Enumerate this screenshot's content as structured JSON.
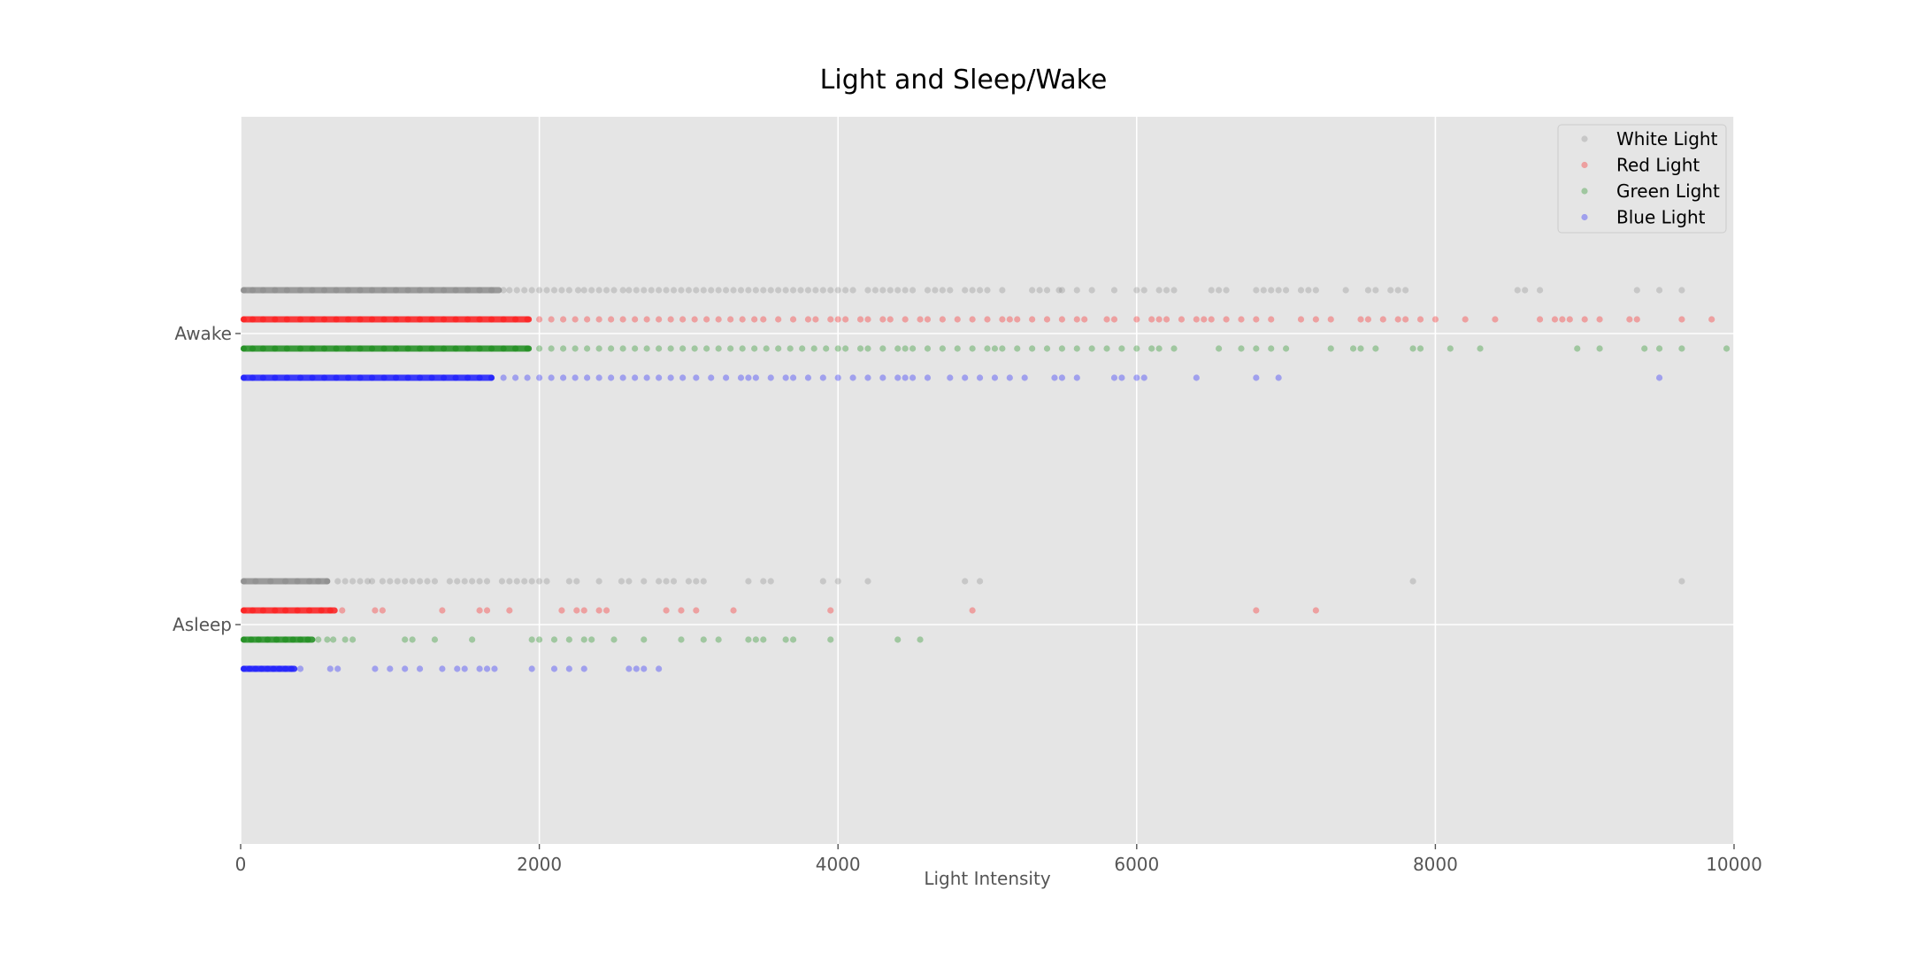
{
  "chart_data": {
    "type": "scatter",
    "title": "Light and Sleep/Wake",
    "xlabel": "Light Intensity",
    "ylabel": "",
    "xlim": [
      0,
      10000
    ],
    "xticks": [
      0,
      2000,
      4000,
      6000,
      8000,
      10000
    ],
    "xtick_labels": [
      "0",
      "2000",
      "4000",
      "6000",
      "8000",
      "10000"
    ],
    "categories": [
      "Asleep",
      "Awake"
    ],
    "grid": true,
    "legend_position": "top-right",
    "series": [
      {
        "name": "White Light",
        "color": "#808080",
        "awake": [
          20,
          80,
          150,
          230,
          310,
          400,
          480,
          560,
          640,
          720,
          800,
          880,
          960,
          1040,
          1120,
          1200,
          1280,
          1360,
          1440,
          1520,
          1600,
          1680,
          1760,
          1800,
          1850,
          1900,
          1950,
          2000,
          2050,
          2100,
          2150,
          2200,
          2260,
          2300,
          2350,
          2400,
          2450,
          2500,
          2560,
          2600,
          2650,
          2700,
          2750,
          2800,
          2850,
          2900,
          2950,
          3000,
          3050,
          3100,
          3150,
          3200,
          3250,
          3300,
          3350,
          3400,
          3450,
          3500,
          3550,
          3600,
          3650,
          3700,
          3750,
          3800,
          3850,
          3900,
          3950,
          4000,
          4050,
          4100,
          4200,
          4250,
          4300,
          4350,
          4400,
          4450,
          4500,
          4600,
          4650,
          4700,
          4750,
          4850,
          4900,
          4950,
          5000,
          5100,
          5300,
          5350,
          5400,
          5480,
          5500,
          5600,
          5700,
          5850,
          6000,
          6050,
          6150,
          6200,
          6250,
          6500,
          6550,
          6600,
          6800,
          6850,
          6900,
          6950,
          7000,
          7100,
          7150,
          7200,
          7400,
          7550,
          7600,
          7700,
          7750,
          7800,
          8550,
          8600,
          8700,
          9350,
          9500,
          9650
        ],
        "asleep": [
          20,
          100,
          200,
          300,
          380,
          460,
          520,
          580,
          650,
          700,
          750,
          800,
          850,
          880,
          950,
          1000,
          1050,
          1100,
          1150,
          1200,
          1250,
          1300,
          1400,
          1450,
          1500,
          1550,
          1600,
          1650,
          1750,
          1800,
          1850,
          1900,
          1950,
          2000,
          2050,
          2200,
          2250,
          2400,
          2550,
          2600,
          2700,
          2800,
          2850,
          2900,
          3000,
          3050,
          3100,
          3400,
          3500,
          3550,
          3900,
          4000,
          4200,
          4850,
          4950,
          7850,
          9650
        ]
      },
      {
        "name": "Red Light",
        "color": "#ff0000",
        "awake": [
          20,
          80,
          150,
          230,
          310,
          400,
          480,
          560,
          640,
          720,
          800,
          880,
          960,
          1040,
          1120,
          1200,
          1280,
          1360,
          1440,
          1520,
          1600,
          1680,
          1760,
          1840,
          1920,
          2000,
          2080,
          2160,
          2240,
          2320,
          2400,
          2480,
          2560,
          2640,
          2720,
          2800,
          2880,
          2960,
          3040,
          3120,
          3200,
          3280,
          3360,
          3440,
          3500,
          3600,
          3700,
          3800,
          3850,
          3950,
          4000,
          4050,
          4150,
          4200,
          4300,
          4350,
          4450,
          4550,
          4600,
          4700,
          4800,
          4900,
          5000,
          5100,
          5150,
          5200,
          5300,
          5400,
          5500,
          5600,
          5650,
          5800,
          5850,
          6000,
          6100,
          6150,
          6200,
          6300,
          6400,
          6450,
          6500,
          6600,
          6700,
          6800,
          6900,
          7100,
          7200,
          7300,
          7500,
          7550,
          7650,
          7750,
          7800,
          7900,
          8000,
          8200,
          8400,
          8700,
          8800,
          8850,
          8900,
          9000,
          9100,
          9300,
          9350,
          9650,
          9850
        ],
        "asleep": [
          20,
          80,
          150,
          230,
          300,
          380,
          460,
          540,
          600,
          680,
          900,
          950,
          1350,
          1600,
          1650,
          1800,
          2150,
          2250,
          2300,
          2400,
          2450,
          2850,
          2950,
          3050,
          3300,
          3950,
          4900,
          6800,
          7200
        ]
      },
      {
        "name": "Green Light",
        "color": "#008000",
        "awake": [
          20,
          80,
          150,
          230,
          310,
          400,
          480,
          560,
          640,
          720,
          800,
          880,
          960,
          1040,
          1120,
          1200,
          1280,
          1360,
          1440,
          1520,
          1600,
          1680,
          1760,
          1840,
          1920,
          2000,
          2080,
          2160,
          2240,
          2320,
          2400,
          2480,
          2560,
          2640,
          2720,
          2800,
          2880,
          2960,
          3040,
          3120,
          3200,
          3280,
          3360,
          3440,
          3520,
          3600,
          3680,
          3760,
          3840,
          3920,
          4000,
          4050,
          4150,
          4200,
          4300,
          4400,
          4450,
          4500,
          4600,
          4700,
          4800,
          4900,
          5000,
          5050,
          5100,
          5200,
          5300,
          5400,
          5500,
          5600,
          5700,
          5800,
          5900,
          6000,
          6100,
          6150,
          6250,
          6550,
          6700,
          6800,
          6900,
          7000,
          7300,
          7450,
          7500,
          7600,
          7850,
          7900,
          8100,
          8300,
          8950,
          9100,
          9400,
          9500,
          9650,
          9950
        ],
        "asleep": [
          20,
          70,
          120,
          180,
          240,
          300,
          350,
          400,
          450,
          520,
          580,
          620,
          700,
          750,
          1100,
          1150,
          1300,
          1550,
          1950,
          2000,
          2100,
          2200,
          2300,
          2350,
          2500,
          2700,
          2950,
          3100,
          3200,
          3400,
          3450,
          3500,
          3650,
          3700,
          3950,
          4400,
          4550
        ]
      },
      {
        "name": "Blue Light",
        "color": "#0000ff",
        "awake": [
          20,
          80,
          150,
          230,
          310,
          400,
          480,
          560,
          640,
          720,
          800,
          880,
          960,
          1040,
          1120,
          1200,
          1280,
          1360,
          1440,
          1520,
          1600,
          1680,
          1760,
          1840,
          1920,
          2000,
          2080,
          2160,
          2240,
          2320,
          2400,
          2480,
          2560,
          2640,
          2720,
          2800,
          2880,
          2960,
          3050,
          3150,
          3250,
          3350,
          3400,
          3450,
          3550,
          3650,
          3700,
          3800,
          3900,
          4000,
          4100,
          4200,
          4300,
          4400,
          4450,
          4500,
          4600,
          4750,
          4850,
          4950,
          5050,
          5150,
          5250,
          5450,
          5500,
          5600,
          5850,
          5900,
          6000,
          6050,
          6400,
          6800,
          6950,
          9500
        ],
        "asleep": [
          20,
          60,
          100,
          140,
          180,
          220,
          260,
          300,
          340,
          400,
          600,
          650,
          900,
          1000,
          1100,
          1200,
          1350,
          1450,
          1500,
          1600,
          1650,
          1700,
          1950,
          2100,
          2200,
          2300,
          2600,
          2650,
          2700,
          2800
        ]
      }
    ]
  }
}
